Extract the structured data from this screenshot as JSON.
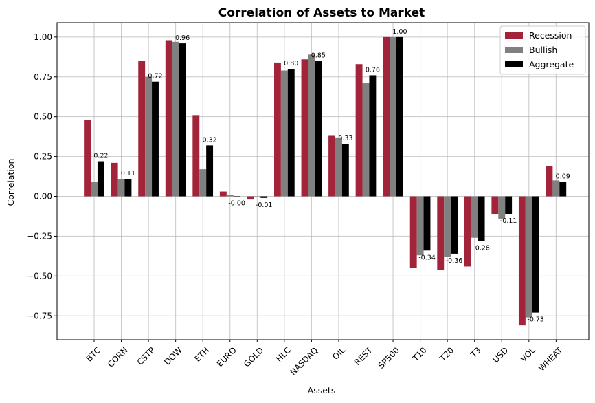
{
  "chart_data": {
    "type": "bar",
    "title": "Correlation of Assets to Market",
    "xlabel": "Assets",
    "ylabel": "Correlation",
    "ylim": [
      -0.9,
      1.09
    ],
    "yticks": [
      -0.75,
      -0.5,
      -0.25,
      0.0,
      0.25,
      0.5,
      0.75,
      1.0
    ],
    "ytick_labels": [
      "−0.75",
      "−0.50",
      "−0.25",
      "0.00",
      "0.25",
      "0.50",
      "0.75",
      "1.00"
    ],
    "grid": true,
    "legend_position": "top-right",
    "categories": [
      "BTC",
      "CORN",
      "CSTP",
      "DOW",
      "ETH",
      "EURO",
      "GOLD",
      "HLC",
      "NASDAQ",
      "OIL",
      "REST",
      "SP500",
      "T10",
      "T20",
      "T3",
      "USD",
      "VOL",
      "WHEAT"
    ],
    "series": [
      {
        "name": "Recession",
        "color": "#a2233a",
        "values": [
          0.48,
          0.21,
          0.85,
          0.98,
          0.51,
          0.03,
          -0.02,
          0.84,
          0.86,
          0.38,
          0.83,
          1.0,
          -0.45,
          -0.46,
          -0.44,
          -0.11,
          -0.81,
          0.19
        ]
      },
      {
        "name": "Bullish",
        "color": "#808080",
        "values": [
          0.09,
          0.11,
          0.75,
          0.97,
          0.17,
          0.01,
          -0.005,
          0.79,
          0.89,
          0.37,
          0.71,
          1.0,
          -0.37,
          -0.38,
          -0.26,
          -0.14,
          -0.76,
          0.1
        ]
      },
      {
        "name": "Aggregate",
        "color": "#000000",
        "values": [
          0.22,
          0.11,
          0.72,
          0.96,
          0.32,
          -0.0,
          -0.01,
          0.8,
          0.85,
          0.33,
          0.76,
          1.0,
          -0.34,
          -0.36,
          -0.28,
          -0.11,
          -0.73,
          0.09
        ]
      }
    ],
    "data_labels": [
      "0.22",
      "0.11",
      "0.72",
      "0.96",
      "0.32",
      "-0.00",
      "-0.01",
      "0.80",
      "0.85",
      "0.33",
      "0.76",
      "1.00",
      "-0.34",
      "-0.36",
      "-0.28",
      "-0.11",
      "-0.73",
      "0.09"
    ]
  }
}
